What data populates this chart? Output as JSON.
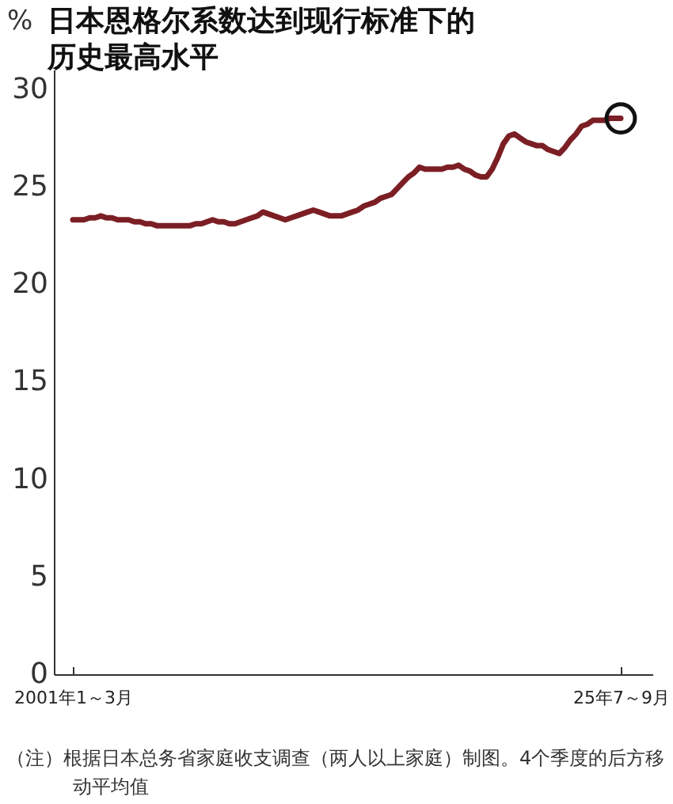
{
  "chart_data": {
    "type": "line",
    "title": "日本恩格尔系数达到现行标准下的历史最高水平",
    "ylabel": "%",
    "categories": [
      "2001年1～3月",
      null,
      null,
      null,
      null,
      null,
      null,
      null,
      null,
      null,
      null,
      null,
      null,
      null,
      null,
      null,
      null,
      null,
      null,
      null,
      null,
      null,
      null,
      null,
      null,
      null,
      null,
      null,
      null,
      null,
      null,
      null,
      null,
      null,
      null,
      null,
      null,
      null,
      null,
      null,
      null,
      null,
      null,
      null,
      null,
      null,
      null,
      null,
      null,
      null,
      null,
      null,
      null,
      null,
      null,
      null,
      null,
      null,
      null,
      null,
      null,
      null,
      null,
      null,
      null,
      null,
      null,
      null,
      null,
      null,
      null,
      null,
      null,
      null,
      null,
      null,
      null,
      null,
      null,
      null,
      null,
      null,
      null,
      null,
      null,
      null,
      null,
      null,
      null,
      null,
      null,
      null,
      null,
      null,
      null,
      null,
      null,
      null,
      "25年7～9月"
    ],
    "ylim": [
      0,
      31
    ],
    "yticks": [
      0,
      5,
      10,
      15,
      20,
      25,
      30
    ],
    "series": [
      {
        "color": "#7b1f24",
        "values": [
          23.3,
          23.3,
          23.3,
          23.4,
          23.4,
          23.5,
          23.4,
          23.4,
          23.3,
          23.3,
          23.3,
          23.2,
          23.2,
          23.1,
          23.1,
          23.0,
          23.0,
          23.0,
          23.0,
          23.0,
          23.0,
          23.0,
          23.1,
          23.1,
          23.2,
          23.3,
          23.2,
          23.2,
          23.1,
          23.1,
          23.2,
          23.3,
          23.4,
          23.5,
          23.7,
          23.6,
          23.5,
          23.4,
          23.3,
          23.4,
          23.5,
          23.6,
          23.7,
          23.8,
          23.7,
          23.6,
          23.5,
          23.5,
          23.5,
          23.6,
          23.7,
          23.8,
          24.0,
          24.1,
          24.2,
          24.4,
          24.5,
          24.6,
          24.9,
          25.2,
          25.5,
          25.7,
          26.0,
          25.9,
          25.9,
          25.9,
          25.9,
          26.0,
          26.0,
          26.1,
          25.9,
          25.8,
          25.6,
          25.5,
          25.5,
          25.9,
          26.5,
          27.2,
          27.6,
          27.7,
          27.5,
          27.3,
          27.2,
          27.1,
          27.1,
          26.9,
          26.8,
          26.7,
          27.0,
          27.4,
          27.7,
          28.1,
          28.2,
          28.4,
          28.4,
          28.4,
          28.5,
          28.5,
          28.5
        ]
      },
      {
        "type": "scatter",
        "marker": "circle",
        "color": "#111111",
        "x": [
          "25年7～9月"
        ],
        "values": [
          28.5
        ]
      }
    ],
    "annotations": [
      "（注）根据日本总务省家庭收支调查（两人以上家庭）制图。4个季度的后方移动平均值"
    ]
  }
}
